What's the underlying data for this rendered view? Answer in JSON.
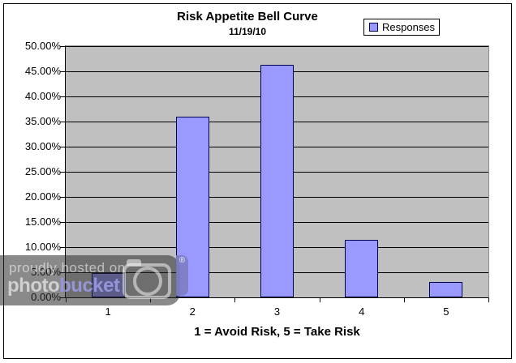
{
  "watermark": {
    "line1": "proudly hosted on",
    "brand_left": "photo",
    "brand_right": "bucket",
    "registered": "®",
    "band_color": "rgba(42,42,42,0.55)",
    "tab_color": "rgba(125,125,198,0.92)"
  },
  "chart_data": {
    "type": "bar",
    "title": "Risk Appetite Bell Curve",
    "subtitle": "11/19/10",
    "categories": [
      "1",
      "2",
      "3",
      "4",
      "5"
    ],
    "series": [
      {
        "name": "Responses",
        "values": [
          4.9,
          36.0,
          46.3,
          11.4,
          3.0
        ]
      }
    ],
    "xlabel": "1 = Avoid Risk, 5 = Take Risk",
    "ylabel": "",
    "ylim": [
      0,
      50
    ],
    "ytick_step": 5,
    "yticks": [
      {
        "value": 50,
        "label": "50.00%"
      },
      {
        "value": 45,
        "label": "45.00%"
      },
      {
        "value": 40,
        "label": "40.00%"
      },
      {
        "value": 35,
        "label": "35.00%"
      },
      {
        "value": 30,
        "label": "30.00%"
      },
      {
        "value": 25,
        "label": "25.00%"
      },
      {
        "value": 20,
        "label": "20.00%"
      },
      {
        "value": 15,
        "label": "15.00%"
      },
      {
        "value": 10,
        "label": "10.00%"
      },
      {
        "value": 5,
        "label": "5.00%"
      },
      {
        "value": 0,
        "label": "0.00%"
      }
    ],
    "legend_position": "top-right",
    "grid": true,
    "colors": {
      "bar_fill": "#9999FF",
      "bar_border": "#000050",
      "plot_bg": "#C0C0C0",
      "grid_color": "#000000"
    }
  }
}
